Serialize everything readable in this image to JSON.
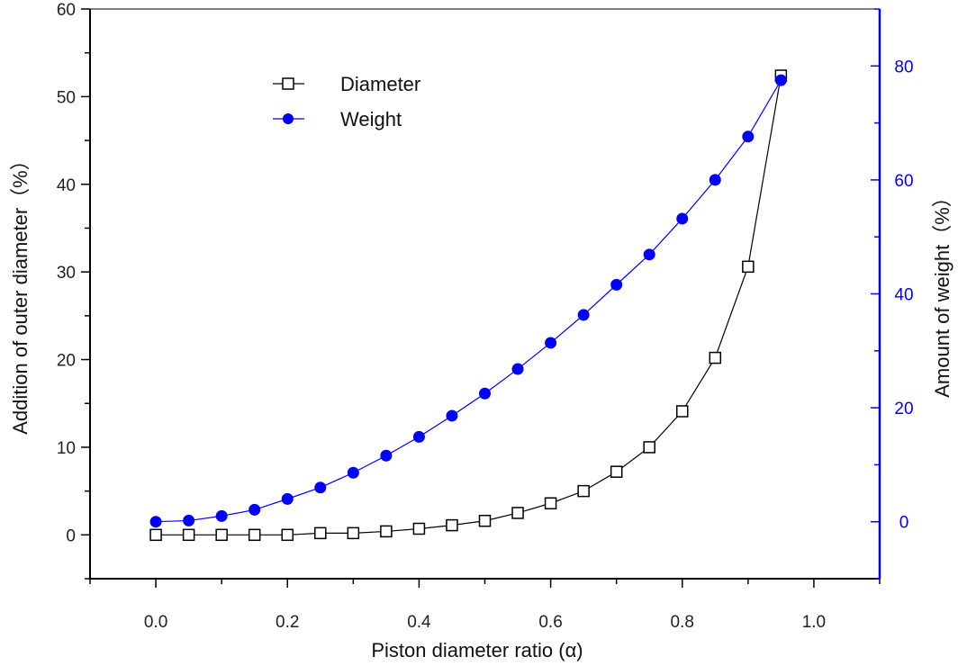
{
  "chart_data": {
    "type": "line",
    "xlabel": "Piston diameter ratio (α)",
    "ylabel_left": "Addition of outer diameter（%）",
    "ylabel_right": "Amount of weight（%）",
    "xlim": [
      -0.1,
      1.1
    ],
    "ylim_left": [
      -5,
      60
    ],
    "ylim_right": [
      -10,
      90
    ],
    "x_ticks": [
      "0.0",
      "0.2",
      "0.4",
      "0.6",
      "0.8",
      "1.0"
    ],
    "y_left_ticks": [
      "0",
      "10",
      "20",
      "30",
      "40",
      "50",
      "60"
    ],
    "y_right_ticks": [
      "0",
      "20",
      "40",
      "60",
      "80"
    ],
    "grid": false,
    "legend_position": "top-left",
    "x": [
      0,
      0.05,
      0.1,
      0.15,
      0.2,
      0.25,
      0.3,
      0.35,
      0.4,
      0.45,
      0.5,
      0.55,
      0.6,
      0.65,
      0.7,
      0.75,
      0.8,
      0.85,
      0.9,
      0.95
    ],
    "series": [
      {
        "name": "Diameter",
        "axis": "left",
        "color": "#000000",
        "marker": "open-square",
        "values": [
          0,
          0,
          0,
          0,
          0,
          0.2,
          0.2,
          0.4,
          0.7,
          1.1,
          1.6,
          2.5,
          3.6,
          5.0,
          7.2,
          10.0,
          14.1,
          20.2,
          30.6,
          52.4
        ]
      },
      {
        "name": "Weight",
        "axis": "right",
        "color": "#0000ff",
        "marker": "filled-circle",
        "values": [
          0,
          0.2,
          1.0,
          2.1,
          4.0,
          6.0,
          8.6,
          11.6,
          14.9,
          18.6,
          22.5,
          26.8,
          31.4,
          36.3,
          41.6,
          46.9,
          53.2,
          60.0,
          67.6,
          77.5
        ]
      }
    ],
    "right_axis_color": "#0000ff"
  }
}
